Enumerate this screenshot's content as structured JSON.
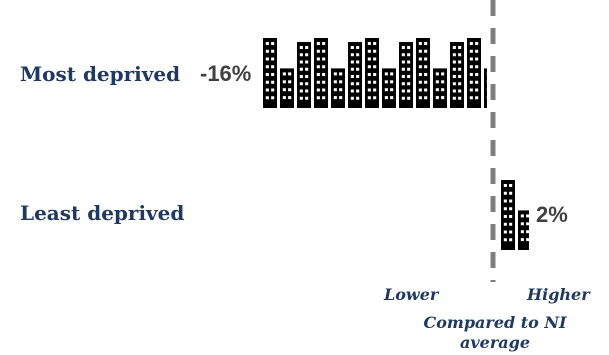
{
  "chart_data": {
    "type": "bar",
    "orientation": "horizontal",
    "categories": [
      "Most deprived",
      "Least deprived"
    ],
    "values": [
      -16,
      2
    ],
    "value_labels": [
      "-16%",
      "2%"
    ],
    "baseline_label": "Compared to NI average",
    "axis_side_labels": {
      "negative": "Lower",
      "positive": "Higher"
    },
    "bar_style": "building-icons",
    "colors": {
      "text": "#1F3864",
      "value": "#404040",
      "icon": "#000000",
      "baseline": "#7F7F7F"
    }
  },
  "texts": {
    "row1_label": "Most deprived",
    "row2_label": "Least deprived",
    "row1_value": "-16%",
    "row2_value": "2%",
    "lower": "Lower",
    "higher": "Higher",
    "caption_line1": "Compared to NI",
    "caption_line2": "average"
  }
}
